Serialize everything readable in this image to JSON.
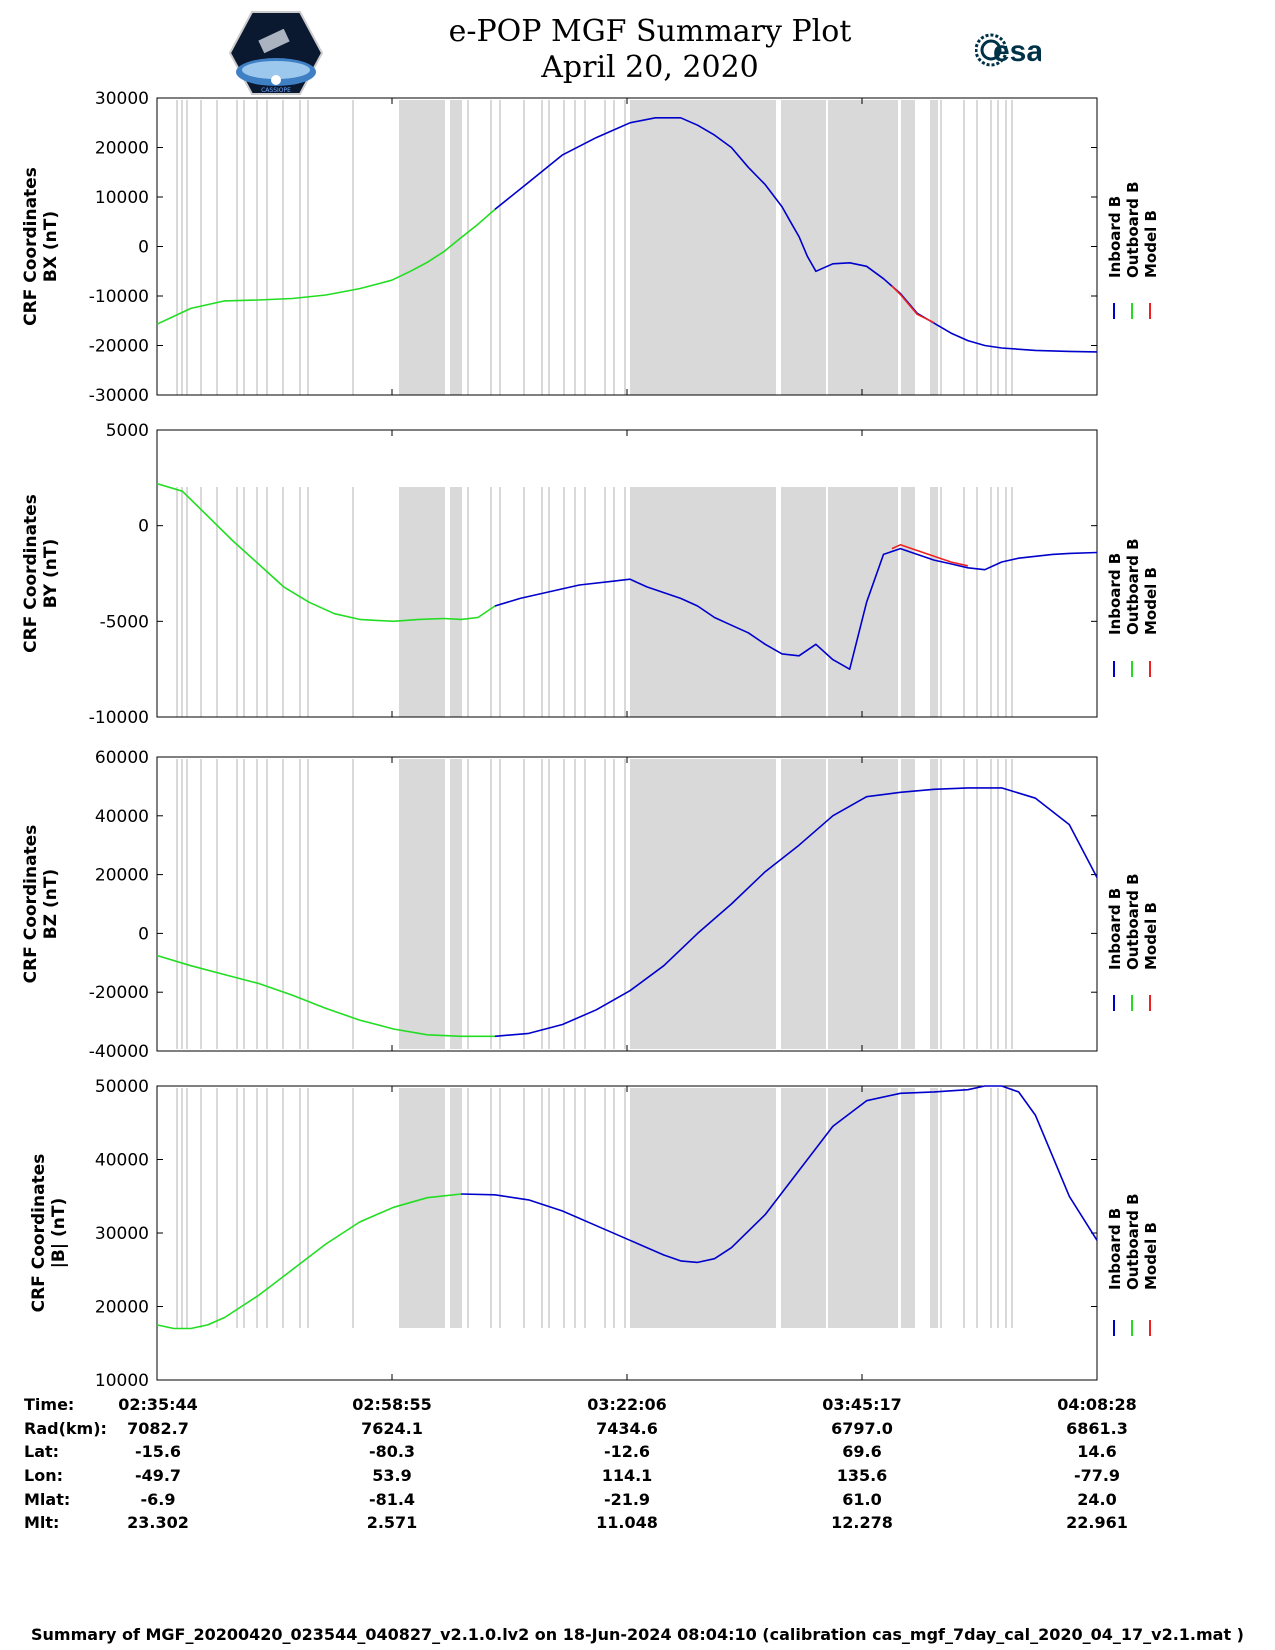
{
  "header": {
    "title_line1": "e-POP MGF Summary Plot",
    "title_line2": "April 20, 2020",
    "esa_text": "esa",
    "logo_caption": "CASSIOPE"
  },
  "colors": {
    "inboard": "#0000cc",
    "outboard": "#22dd22",
    "model": "#ee2222",
    "gap": "#d9d9d9"
  },
  "chart_data": [
    {
      "type": "line",
      "ylabel_line1": "CRF Coordinates",
      "ylabel_line2": "BX (nT)",
      "ylim": [
        -30000,
        30000
      ],
      "yticks": [
        -30000,
        -20000,
        -10000,
        0,
        10000,
        20000,
        30000
      ],
      "xlim": [
        0,
        5564
      ],
      "legend": [
        "Inboard B",
        "Outboard B",
        "Model B"
      ],
      "series": [
        {
          "name": "Outboard B",
          "x": [
            0,
            200,
            400,
            600,
            800,
            1000,
            1200,
            1390,
            1500,
            1600,
            1700,
            1800,
            1900,
            2000
          ],
          "values": [
            -15700,
            -12500,
            -11000,
            -10800,
            -10500,
            -9800,
            -8500,
            -6800,
            -5000,
            -3200,
            -1000,
            1800,
            4500,
            7500
          ]
        },
        {
          "name": "Inboard B",
          "x": [
            2000,
            2200,
            2400,
            2600,
            2800,
            2950,
            3100,
            3200,
            3300,
            3400,
            3500,
            3600,
            3700,
            3750,
            3800,
            3850,
            3900,
            4000,
            4100,
            4200,
            4300,
            4400,
            4500,
            4600,
            4700,
            4800,
            4900,
            5000,
            5200,
            5400,
            5564
          ],
          "values": [
            7500,
            13000,
            18500,
            22000,
            25000,
            26000,
            26000,
            24500,
            22500,
            20000,
            16000,
            12500,
            8000,
            5000,
            2000,
            -2000,
            -5000,
            -3500,
            -3300,
            -4000,
            -6500,
            -9500,
            -13500,
            -15500,
            -17500,
            -19000,
            -20000,
            -20500,
            -21000,
            -21200,
            -21300
          ]
        },
        {
          "name": "Model B",
          "x": [
            4350,
            4400,
            4500,
            4600
          ],
          "values": [
            -8000,
            -9700,
            -13700,
            -15400
          ]
        }
      ]
    },
    {
      "type": "line",
      "ylabel_line1": "CRF Coordinates",
      "ylabel_line2": "BY (nT)",
      "ylim": [
        -10000,
        5000
      ],
      "yticks": [
        -10000,
        -5000,
        0,
        5000
      ],
      "xlim": [
        0,
        5564
      ],
      "legend": [
        "Inboard B",
        "Outboard B",
        "Model B"
      ],
      "series": [
        {
          "name": "Outboard B",
          "x": [
            0,
            150,
            300,
            450,
            600,
            750,
            900,
            1050,
            1200,
            1300,
            1400,
            1550,
            1700,
            1800,
            1900,
            2000
          ],
          "values": [
            2200,
            1800,
            500,
            -800,
            -2000,
            -3200,
            -4000,
            -4600,
            -4900,
            -4950,
            -5000,
            -4900,
            -4850,
            -4900,
            -4800,
            -4200
          ]
        },
        {
          "name": "Inboard B",
          "x": [
            2000,
            2150,
            2300,
            2500,
            2700,
            2800,
            2900,
            3000,
            3100,
            3200,
            3300,
            3400,
            3500,
            3600,
            3700,
            3800,
            3900,
            4000,
            4100,
            4200,
            4300,
            4400,
            4500,
            4600,
            4700,
            4800,
            4900,
            5000,
            5100,
            5200,
            5300,
            5400,
            5564
          ],
          "values": [
            -4200,
            -3800,
            -3500,
            -3100,
            -2900,
            -2800,
            -3200,
            -3500,
            -3800,
            -4200,
            -4800,
            -5200,
            -5600,
            -6200,
            -6700,
            -6800,
            -6200,
            -7000,
            -7500,
            -4000,
            -1500,
            -1200,
            -1500,
            -1800,
            -2000,
            -2200,
            -2300,
            -1900,
            -1700,
            -1600,
            -1500,
            -1450,
            -1400
          ]
        },
        {
          "name": "Model B",
          "x": [
            4350,
            4400,
            4500,
            4600,
            4700,
            4800
          ],
          "values": [
            -1200,
            -1000,
            -1300,
            -1600,
            -1900,
            -2100
          ]
        }
      ]
    },
    {
      "type": "line",
      "ylabel_line1": "CRF Coordinates",
      "ylabel_line2": "BZ (nT)",
      "ylim": [
        -40000,
        60000
      ],
      "yticks": [
        -40000,
        -20000,
        0,
        20000,
        40000,
        60000
      ],
      "xlim": [
        0,
        5564
      ],
      "legend": [
        "Inboard B",
        "Outboard B",
        "Model B"
      ],
      "series": [
        {
          "name": "Outboard B",
          "x": [
            0,
            200,
            400,
            600,
            800,
            1000,
            1200,
            1400,
            1600,
            1800,
            2000
          ],
          "values": [
            -7500,
            -11000,
            -14000,
            -17000,
            -21000,
            -25500,
            -29500,
            -32500,
            -34500,
            -35000,
            -35000
          ]
        },
        {
          "name": "Inboard B",
          "x": [
            2000,
            2200,
            2400,
            2600,
            2800,
            3000,
            3200,
            3400,
            3600,
            3800,
            4000,
            4200,
            4400,
            4600,
            4800,
            5000,
            5200,
            5400,
            5564
          ],
          "values": [
            -35000,
            -34000,
            -31000,
            -26000,
            -19500,
            -11000,
            0,
            10000,
            21000,
            30000,
            40000,
            46500,
            48000,
            49000,
            49500,
            49500,
            46000,
            37000,
            19000
          ]
        }
      ]
    },
    {
      "type": "line",
      "ylabel_line1": "CRF Coordinates",
      "ylabel_line2": "|B| (nT)",
      "ylim": [
        10000,
        50000
      ],
      "yticks": [
        10000,
        20000,
        30000,
        40000,
        50000
      ],
      "xlim": [
        0,
        5564
      ],
      "legend": [
        "Inboard B",
        "Outboard B",
        "Model B"
      ],
      "xticks": [
        "02:35:44",
        "02:58:55",
        "03:22:06",
        "03:45:17",
        "04:08:28"
      ],
      "series": [
        {
          "name": "Outboard B",
          "x": [
            0,
            100,
            200,
            300,
            400,
            600,
            800,
            1000,
            1200,
            1400,
            1600,
            1800
          ],
          "values": [
            17500,
            17000,
            17000,
            17500,
            18500,
            21500,
            25000,
            28500,
            31500,
            33500,
            34800,
            35300
          ]
        },
        {
          "name": "Inboard B",
          "x": [
            1800,
            2000,
            2200,
            2400,
            2600,
            2800,
            3000,
            3100,
            3200,
            3300,
            3400,
            3600,
            3800,
            4000,
            4200,
            4400,
            4600,
            4800,
            4900,
            5000,
            5100,
            5200,
            5300,
            5400,
            5564
          ],
          "values": [
            35300,
            35200,
            34500,
            33000,
            31000,
            29000,
            27000,
            26200,
            26000,
            26500,
            28000,
            32500,
            38500,
            44500,
            48000,
            49000,
            49200,
            49500,
            50000,
            50000,
            49200,
            46000,
            40500,
            35000,
            29000
          ]
        }
      ]
    }
  ],
  "ephemeris": {
    "labels": [
      "Time:",
      "Rad(km):",
      "Lat:",
      "Lon:",
      "Mlat:",
      "Mlt:"
    ],
    "columns": [
      [
        "02:35:44",
        "7082.7",
        "-15.6",
        "-49.7",
        "-6.9",
        "23.302"
      ],
      [
        "02:58:55",
        "7624.1",
        "-80.3",
        "53.9",
        "-81.4",
        "2.571"
      ],
      [
        "03:22:06",
        "7434.6",
        "-12.6",
        "114.1",
        "-21.9",
        "11.048"
      ],
      [
        "03:45:17",
        "6797.0",
        "69.6",
        "135.6",
        "61.0",
        "12.278"
      ],
      [
        "04:08:28",
        "6861.3",
        "14.6",
        "-77.9",
        "24.0",
        "22.961"
      ]
    ]
  },
  "footer": "Summary of MGF_20200420_023544_040827_v2.1.0.lv2 on 18-Jun-2024 08:04:10 (calibration cas_mgf_7day_cal_2020_04_17_v2.1.mat )"
}
